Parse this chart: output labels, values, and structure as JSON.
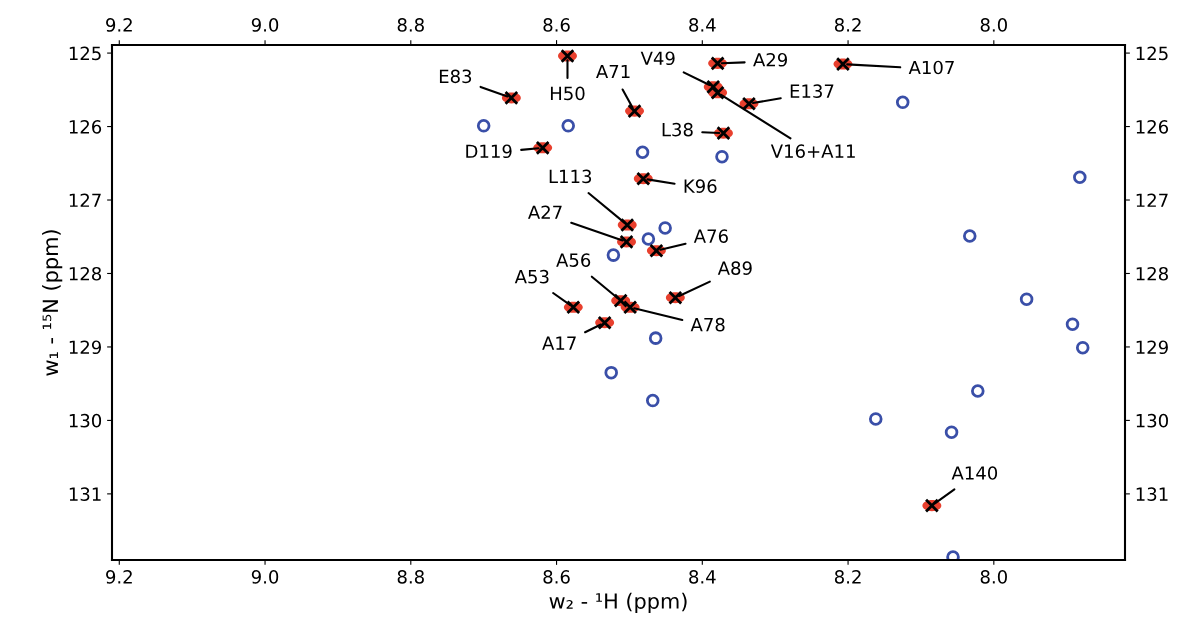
{
  "chart_data": {
    "type": "scatter",
    "xlabel": "w₂ - ¹H (ppm)",
    "ylabel": "w₁ - ¹⁵N (ppm)",
    "xlim": [
      9.21,
      7.82
    ],
    "xticks": [
      {
        "value": 9.2,
        "label": "9.2"
      },
      {
        "value": 9.0,
        "label": "9.0"
      },
      {
        "value": 8.8,
        "label": "8.8"
      },
      {
        "value": 8.6,
        "label": "8.6"
      },
      {
        "value": 8.4,
        "label": "8.4"
      },
      {
        "value": 8.2,
        "label": "8.2"
      },
      {
        "value": 8.0,
        "label": "8.0"
      }
    ],
    "x2lim": [
      9.21,
      7.82
    ],
    "x2ticks": [
      {
        "value": 9.2,
        "label": "9.2"
      },
      {
        "value": 9.0,
        "label": "9.0"
      },
      {
        "value": 8.8,
        "label": "8.8"
      },
      {
        "value": 8.6,
        "label": "8.6"
      },
      {
        "value": 8.4,
        "label": "8.4"
      },
      {
        "value": 8.2,
        "label": "8.2"
      },
      {
        "value": 8.0,
        "label": "8.0"
      }
    ],
    "ylim": [
      131.9,
      124.89
    ],
    "yticks": [
      125,
      126,
      127,
      128,
      129,
      130,
      131
    ],
    "y2lim": [
      131.9,
      124.89
    ],
    "y2ticks": [
      125,
      126,
      127,
      128,
      129,
      130,
      131
    ],
    "grid": false,
    "legend": false,
    "series": [
      {
        "color": "#3a4fa8",
        "marker": "circle",
        "x": [
          8.7,
          8.584,
          8.482,
          8.373,
          8.451,
          8.474,
          8.522,
          8.125,
          7.882,
          8.033,
          7.955,
          7.892,
          7.878,
          8.022,
          8.162,
          8.058,
          8.056,
          8.464,
          8.525,
          8.468
        ],
        "values": [
          125.99,
          125.99,
          126.35,
          126.41,
          127.38,
          127.53,
          127.75,
          125.67,
          126.69,
          127.49,
          128.35,
          128.69,
          129.01,
          129.6,
          129.98,
          130.16,
          131.86,
          128.88,
          129.35,
          129.73
        ]
      },
      {
        "color": "#e8402e",
        "x": [
          8.585,
          8.662,
          8.493,
          8.619,
          8.371,
          8.481,
          8.503,
          8.504,
          8.463,
          8.385,
          8.379,
          8.379,
          8.207,
          8.336,
          8.577,
          8.512,
          8.499,
          8.437,
          8.534,
          8.085
        ],
        "values": [
          125.04,
          125.61,
          125.79,
          126.29,
          126.09,
          126.71,
          127.34,
          127.57,
          127.69,
          125.46,
          125.54,
          125.14,
          125.15,
          125.69,
          128.46,
          128.37,
          128.46,
          128.33,
          128.67,
          131.16
        ]
      }
    ],
    "annotations": [
      {
        "text": "H50",
        "x": 8.585,
        "y": 125.04
      },
      {
        "text": "E83",
        "x": 8.662,
        "y": 125.61
      },
      {
        "text": "A71",
        "x": 8.493,
        "y": 125.79
      },
      {
        "text": "D119",
        "x": 8.619,
        "y": 126.29
      },
      {
        "text": "L38",
        "x": 8.371,
        "y": 126.09
      },
      {
        "text": "K96",
        "x": 8.481,
        "y": 126.71
      },
      {
        "text": "L113",
        "x": 8.503,
        "y": 127.34
      },
      {
        "text": "A27",
        "x": 8.504,
        "y": 127.57
      },
      {
        "text": "A76",
        "x": 8.463,
        "y": 127.69
      },
      {
        "text": "V49",
        "x": 8.385,
        "y": 125.46
      },
      {
        "text": "V16+A11",
        "x": 8.379,
        "y": 125.54
      },
      {
        "text": "A29",
        "x": 8.379,
        "y": 125.14
      },
      {
        "text": "A107",
        "x": 8.207,
        "y": 125.15
      },
      {
        "text": "E137",
        "x": 8.336,
        "y": 125.69
      },
      {
        "text": "A53",
        "x": 8.577,
        "y": 128.46
      },
      {
        "text": "A56",
        "x": 8.512,
        "y": 128.37
      },
      {
        "text": "A78",
        "x": 8.499,
        "y": 128.46
      },
      {
        "text": "A89",
        "x": 8.437,
        "y": 128.33
      },
      {
        "text": "A17",
        "x": 8.534,
        "y": 128.67
      },
      {
        "text": "A140",
        "x": 8.085,
        "y": 131.16
      }
    ]
  }
}
